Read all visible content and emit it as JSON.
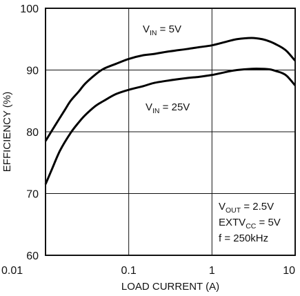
{
  "chart_data": {
    "type": "line",
    "title": "",
    "xlabel": "LOAD CURRENT (A)",
    "ylabel": "EFFICIENCY (%)",
    "xscale": "log",
    "xlim": [
      0.01,
      10
    ],
    "ylim": [
      60,
      100
    ],
    "grid": true,
    "x_ticks": [
      "0.01",
      "0.1",
      "1",
      "10"
    ],
    "y_ticks": [
      "60",
      "70",
      "80",
      "90",
      "100"
    ],
    "series": [
      {
        "name": "VIN = 5V",
        "x": [
          0.01,
          0.013,
          0.017,
          0.02,
          0.025,
          0.03,
          0.04,
          0.05,
          0.07,
          0.1,
          0.15,
          0.2,
          0.3,
          0.5,
          0.7,
          1,
          1.5,
          2,
          3,
          4,
          5,
          6,
          7,
          8,
          10
        ],
        "y": [
          78.5,
          81.0,
          83.5,
          85.0,
          86.5,
          87.8,
          89.3,
          90.2,
          91.0,
          91.8,
          92.4,
          92.6,
          93.0,
          93.4,
          93.7,
          94.0,
          94.6,
          95.0,
          95.2,
          95.0,
          94.6,
          94.1,
          93.6,
          93.0,
          91.5
        ]
      },
      {
        "name": "VIN = 25V",
        "x": [
          0.01,
          0.012,
          0.015,
          0.02,
          0.025,
          0.03,
          0.04,
          0.05,
          0.07,
          0.1,
          0.15,
          0.2,
          0.3,
          0.5,
          0.7,
          1,
          1.5,
          2,
          3,
          4,
          5,
          6,
          7,
          8,
          10
        ],
        "y": [
          71.5,
          74.0,
          77.0,
          79.8,
          81.5,
          82.7,
          84.2,
          85.0,
          86.1,
          86.8,
          87.4,
          87.9,
          88.3,
          88.7,
          88.9,
          89.2,
          89.7,
          90.0,
          90.2,
          90.2,
          90.1,
          89.8,
          89.5,
          89.0,
          87.5
        ]
      }
    ],
    "annotations": {
      "vin5": {
        "main": "V",
        "sub": "IN",
        "rest": " = 5V"
      },
      "vin25": {
        "main": "V",
        "sub": "IN",
        "rest": " = 25V"
      },
      "vout": {
        "main": "V",
        "sub": "OUT",
        "rest": " = 2.5V"
      },
      "extv": {
        "main": "EXTV",
        "sub": "CC",
        "rest": " = 5V"
      },
      "freq": "f = 250kHz"
    }
  }
}
